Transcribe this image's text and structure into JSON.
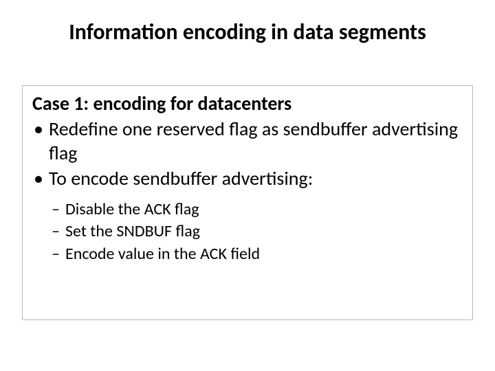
{
  "slide": {
    "title": "Information encoding in data segments",
    "case_heading": "Case 1: encoding for datacenters",
    "bullets_l1": [
      "Redefine one reserved flag as sendbuffer advertising flag",
      "To encode sendbuffer advertising:"
    ],
    "bullets_l2": [
      "Disable the ACK flag",
      "Set the SNDBUF flag",
      "Encode value in the ACK field"
    ],
    "markers": {
      "dot": "•",
      "dash": "–"
    },
    "style": {
      "title_fontsize": 32,
      "l1_fontsize": 28,
      "l2_fontsize": 24,
      "text_color": "#000000",
      "background_color": "#ffffff",
      "box_border_color": "#b8b8b8"
    }
  }
}
